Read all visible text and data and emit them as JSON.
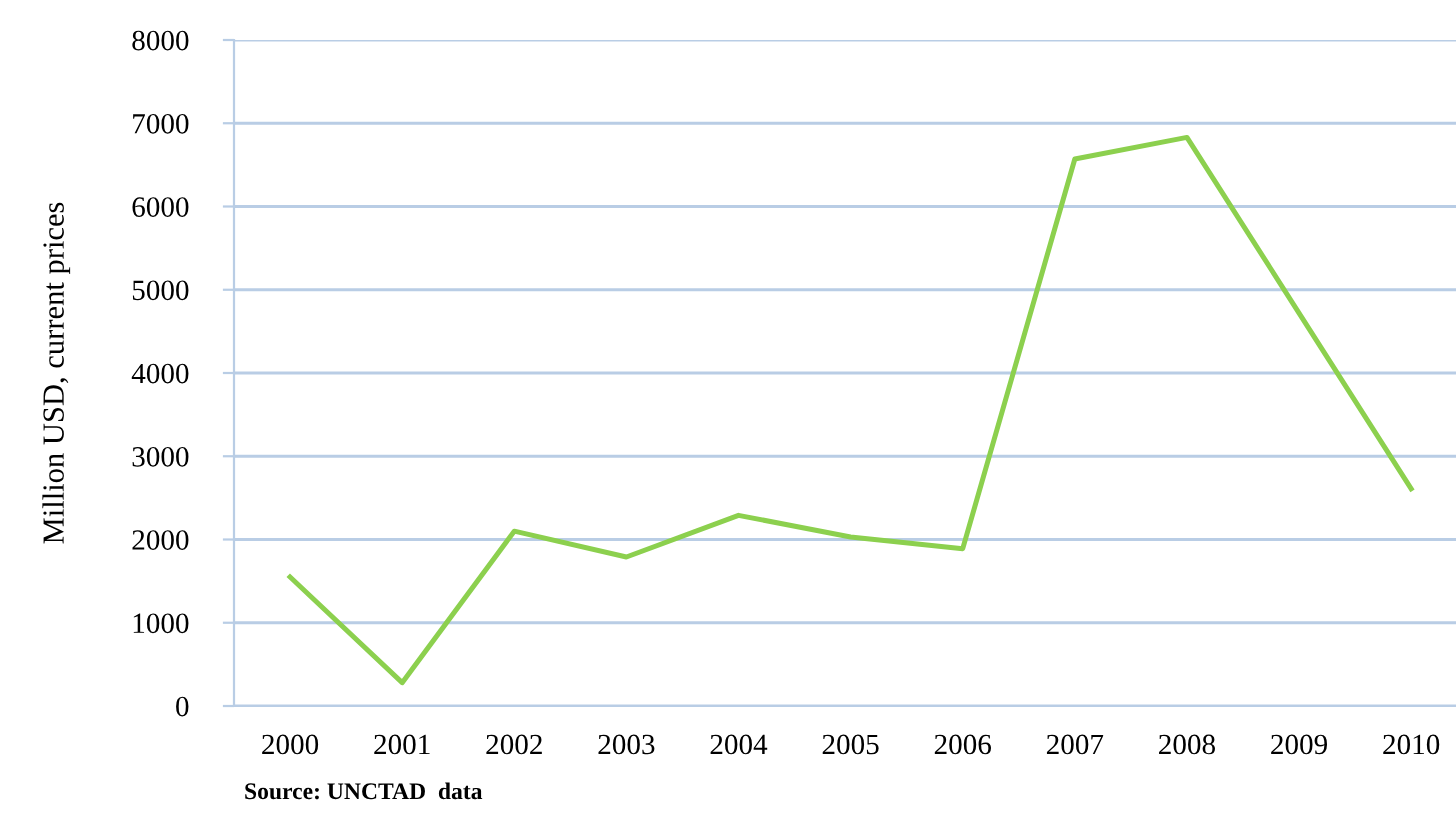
{
  "chart_data": {
    "type": "line",
    "ylabel": "Million USD, current prices",
    "categories": [
      "2000",
      "2001",
      "2002",
      "2003",
      "2004",
      "2005",
      "2006",
      "2007",
      "2008",
      "2009",
      "2010"
    ],
    "series": [
      {
        "color": "#8cd04e",
        "values": [
          1550,
          280,
          2100,
          1790,
          2290,
          2030,
          1890,
          6570,
          6830,
          4720,
          2610
        ]
      }
    ],
    "ylim": [
      0,
      8000
    ],
    "yticks": [
      0,
      1000,
      2000,
      3000,
      4000,
      5000,
      6000,
      7000,
      8000
    ],
    "grid": "y",
    "legend": false,
    "marker": "none",
    "line_style": "solid",
    "annotations": [
      "Source: UNCTAD  data"
    ]
  }
}
